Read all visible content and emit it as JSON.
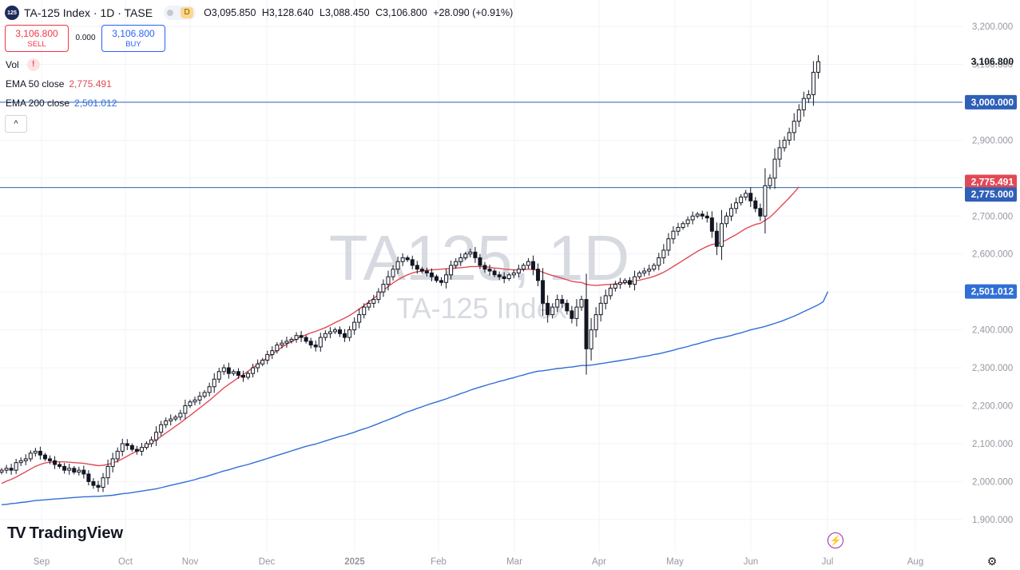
{
  "header": {
    "symbol_badge": "125",
    "title": "TA-125 Index · 1D · TASE",
    "timeframe_badge": "D",
    "open": "O3,095.850",
    "high": "H3,128.640",
    "low": "L3,088.450",
    "close": "C3,106.800",
    "change": "+28.090 (+0.91%)"
  },
  "trade": {
    "sell_price": "3,106.800",
    "sell_label": "SELL",
    "spread": "0.000",
    "buy_price": "3,106.800",
    "buy_label": "BUY"
  },
  "indicators": {
    "vol_label": "Vol",
    "vol_warning": "!",
    "ema50_label": "EMA 50 close",
    "ema50_value": "2,775.491",
    "ema200_label": "EMA 200 close",
    "ema200_value": "2,501.012",
    "collapse_glyph": "^"
  },
  "watermark": {
    "line1": "TA125, 1D",
    "line2": "TA-125 Index"
  },
  "brand": {
    "name": "TradingView",
    "mark": "TV"
  },
  "colors": {
    "up": "#131722",
    "down": "#131722",
    "ema50": "#e04a55",
    "ema200": "#2f6fd6",
    "hline": "#2f5fb8",
    "grid": "#f0f3fa",
    "text": "#131722",
    "muted": "#9598a1"
  },
  "chart_data": {
    "type": "candlestick",
    "symbol": "TA-125 Index",
    "interval": "1D",
    "exchange": "TASE",
    "ylim": [
      1850,
      3250
    ],
    "y_ticks": [
      "3,200.000",
      "3,100.000",
      "3,000.000",
      "2,900.000",
      "2,800.000",
      "2,700.000",
      "2,600.000",
      "2,500.000",
      "2,400.000",
      "2,300.000",
      "2,200.000",
      "2,100.000",
      "2,000.000",
      "1,900.000"
    ],
    "x_ticks": [
      "Sep",
      "Oct",
      "Nov",
      "Dec",
      "2025",
      "Feb",
      "Mar",
      "Apr",
      "May",
      "Jun",
      "Jul",
      "Aug"
    ],
    "price_labels": {
      "last": "3,106.800",
      "level_3000": "3,000.000",
      "ema50": "2,775.491",
      "level_2775": "2,775.000",
      "ema200": "2,501.012"
    },
    "horizontal_lines": [
      3000,
      2775
    ],
    "closes": [
      2030,
      2035,
      2030,
      2050,
      2055,
      2060,
      2075,
      2080,
      2070,
      2060,
      2055,
      2045,
      2040,
      2030,
      2035,
      2025,
      2030,
      2020,
      2000,
      1990,
      1985,
      2010,
      2040,
      2060,
      2080,
      2100,
      2095,
      2085,
      2080,
      2090,
      2100,
      2110,
      2130,
      2150,
      2160,
      2165,
      2170,
      2180,
      2200,
      2210,
      2215,
      2225,
      2235,
      2250,
      2270,
      2290,
      2300,
      2285,
      2290,
      2280,
      2275,
      2285,
      2300,
      2310,
      2320,
      2335,
      2345,
      2360,
      2365,
      2370,
      2375,
      2385,
      2380,
      2370,
      2360,
      2355,
      2380,
      2390,
      2395,
      2400,
      2390,
      2380,
      2400,
      2420,
      2440,
      2460,
      2470,
      2480,
      2500,
      2520,
      2540,
      2560,
      2580,
      2590,
      2585,
      2570,
      2560,
      2555,
      2550,
      2540,
      2530,
      2525,
      2545,
      2570,
      2580,
      2590,
      2600,
      2605,
      2590,
      2570,
      2560,
      2555,
      2545,
      2540,
      2535,
      2545,
      2550,
      2560,
      2570,
      2580,
      2560,
      2530,
      2470,
      2440,
      2460,
      2480,
      2470,
      2450,
      2430,
      2460,
      2480,
      2350,
      2400,
      2440,
      2470,
      2490,
      2510,
      2520,
      2525,
      2530,
      2520,
      2540,
      2550,
      2555,
      2560,
      2570,
      2590,
      2610,
      2640,
      2660,
      2670,
      2680,
      2690,
      2700,
      2705,
      2700,
      2695,
      2660,
      2620,
      2680,
      2700,
      2720,
      2735,
      2750,
      2760,
      2740,
      2720,
      2700,
      2780,
      2800,
      2850,
      2880,
      2900,
      2920,
      2950,
      2980,
      3010,
      3020,
      3079,
      3107
    ],
    "ema50": [
      1995,
      2001,
      2006,
      2012,
      2019,
      2026,
      2033,
      2040,
      2045,
      2049,
      2051,
      2052,
      2052,
      2052,
      2051,
      2050,
      2049,
      2048,
      2046,
      2044,
      2042,
      2043,
      2045,
      2049,
      2054,
      2060,
      2067,
      2074,
      2080,
      2087,
      2094,
      2102,
      2110,
      2119,
      2128,
      2137,
      2146,
      2155,
      2165,
      2174,
      2184,
      2194,
      2204,
      2214,
      2225,
      2236,
      2247,
      2256,
      2265,
      2274,
      2282,
      2291,
      2300,
      2309,
      2318,
      2327,
      2336,
      2345,
      2354,
      2362,
      2369,
      2376,
      2382,
      2387,
      2392,
      2396,
      2401,
      2406,
      2412,
      2419,
      2425,
      2431,
      2438,
      2446,
      2455,
      2464,
      2474,
      2483,
      2493,
      2504,
      2514,
      2524,
      2532,
      2539,
      2545,
      2550,
      2553,
      2555,
      2557,
      2558,
      2559,
      2560,
      2561,
      2562,
      2563,
      2564,
      2565,
      2567,
      2567,
      2567,
      2566,
      2565,
      2563,
      2562,
      2560,
      2559,
      2558,
      2558,
      2559,
      2560,
      2559,
      2557,
      2552,
      2547,
      2543,
      2540,
      2536,
      2532,
      2528,
      2526,
      2525,
      2520,
      2518,
      2517,
      2518,
      2519,
      2520,
      2521,
      2523,
      2524,
      2526,
      2529,
      2531,
      2534,
      2537,
      2541,
      2546,
      2552,
      2559,
      2567,
      2575,
      2583,
      2591,
      2599,
      2607,
      2614,
      2620,
      2625,
      2627,
      2631,
      2637,
      2644,
      2651,
      2659,
      2667,
      2673,
      2678,
      2681,
      2689,
      2697,
      2709,
      2722,
      2735,
      2748,
      2762,
      2777
    ],
    "ema200": [
      1939,
      1940,
      1942,
      1943,
      1945,
      1946,
      1948,
      1950,
      1951,
      1952,
      1953,
      1954,
      1955,
      1956,
      1957,
      1958,
      1959,
      1960,
      1960,
      1961,
      1961,
      1962,
      1963,
      1964,
      1966,
      1968,
      1969,
      1971,
      1973,
      1975,
      1977,
      1979,
      1981,
      1984,
      1987,
      1990,
      1993,
      1996,
      1999,
      2002,
      2005,
      2009,
      2012,
      2016,
      2020,
      2024,
      2028,
      2031,
      2035,
      2039,
      2042,
      2045,
      2049,
      2053,
      2057,
      2061,
      2065,
      2069,
      2073,
      2077,
      2081,
      2085,
      2089,
      2093,
      2096,
      2099,
      2103,
      2107,
      2111,
      2115,
      2119,
      2122,
      2126,
      2130,
      2135,
      2139,
      2143,
      2148,
      2153,
      2158,
      2163,
      2168,
      2173,
      2179,
      2184,
      2188,
      2193,
      2197,
      2202,
      2206,
      2210,
      2214,
      2218,
      2223,
      2227,
      2232,
      2236,
      2241,
      2245,
      2249,
      2253,
      2257,
      2260,
      2264,
      2267,
      2271,
      2274,
      2278,
      2281,
      2285,
      2288,
      2291,
      2292,
      2294,
      2296,
      2298,
      2299,
      2301,
      2302,
      2304,
      2306,
      2306,
      2307,
      2309,
      2311,
      2313,
      2315,
      2317,
      2319,
      2321,
      2323,
      2325,
      2328,
      2330,
      2332,
      2335,
      2337,
      2340,
      2343,
      2346,
      2350,
      2353,
      2356,
      2360,
      2363,
      2367,
      2370,
      2374,
      2377,
      2379,
      2382,
      2385,
      2389,
      2392,
      2396,
      2400,
      2403,
      2406,
      2409,
      2413,
      2417,
      2421,
      2426,
      2431,
      2436,
      2442,
      2448,
      2454,
      2460,
      2466,
      2474,
      2501
    ]
  }
}
